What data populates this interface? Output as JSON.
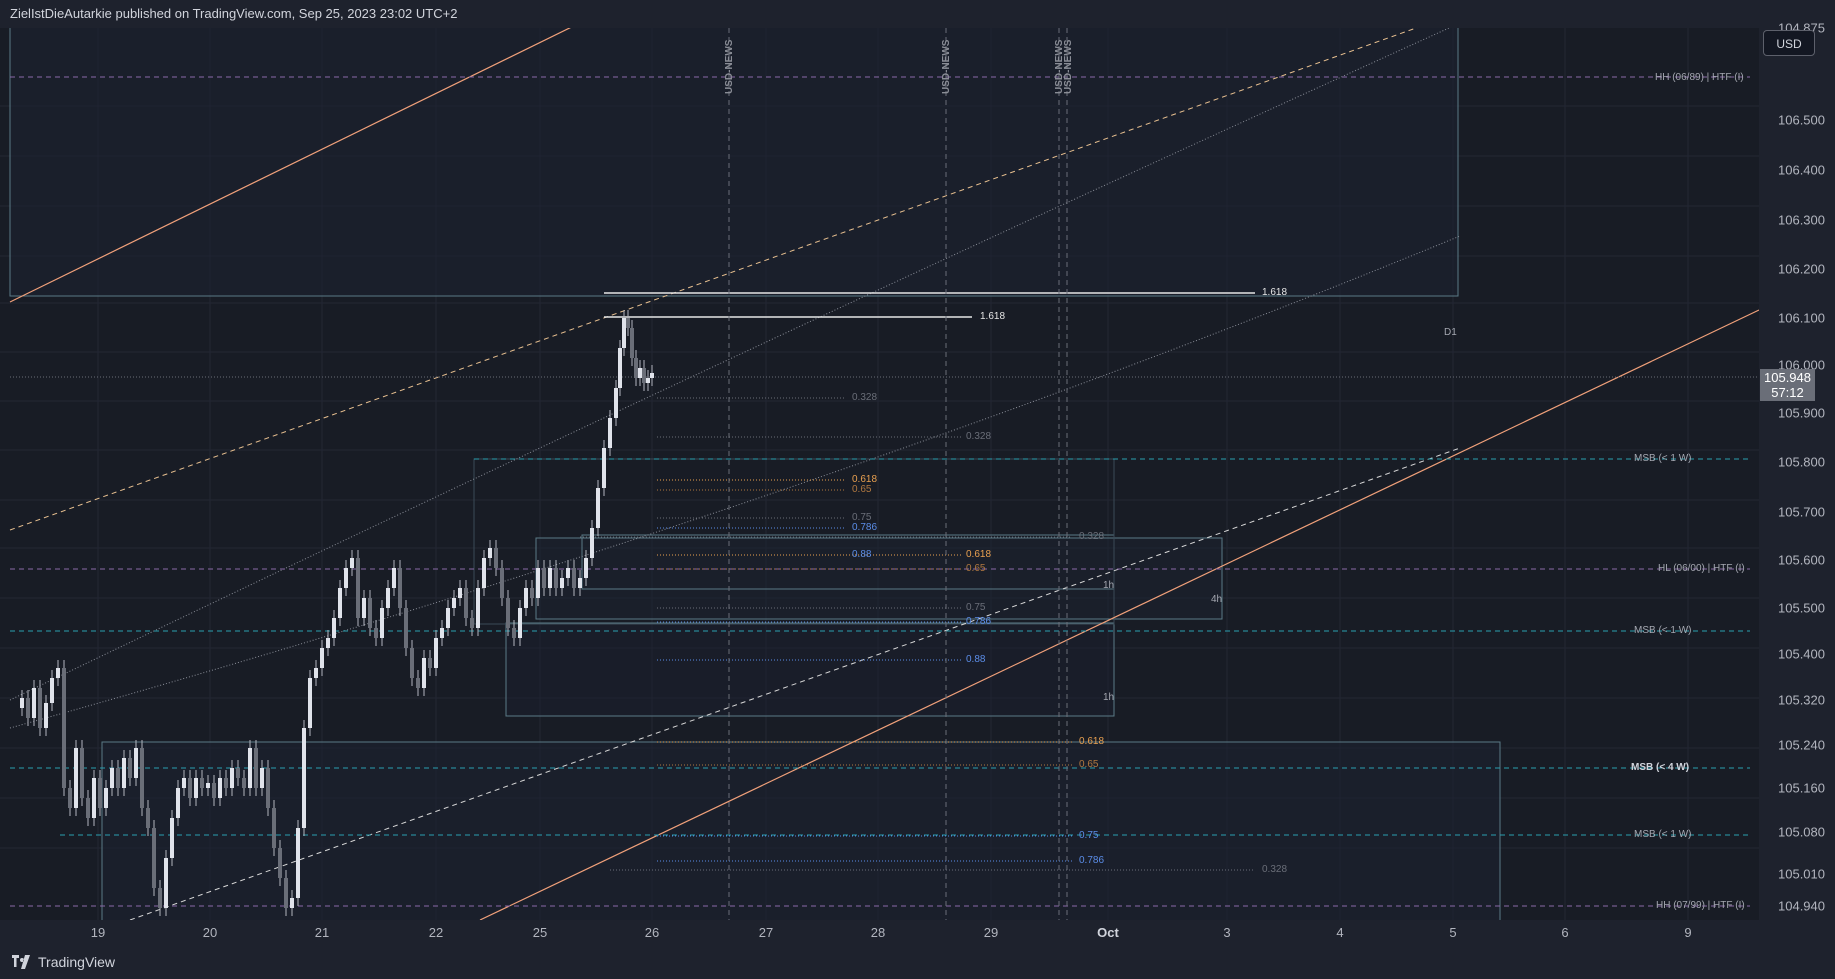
{
  "header": {
    "title": "ZielIstDieAutarkie published on TradingView.com, Sep 25, 2023 23:02 UTC+2"
  },
  "currency": "USD",
  "last_price": {
    "value": "105.948",
    "countdown": "57:12"
  },
  "price_axis": [
    "106.500",
    "106.400",
    "106.300",
    "106.200",
    "106.100",
    "106.000",
    "105.900",
    "105.800",
    "105.700",
    "105.600",
    "105.500",
    "105.400",
    "105.320",
    "105.240",
    "105.160",
    "105.080",
    "105.010",
    "104.940",
    "104.875"
  ],
  "time_axis": [
    {
      "label": "19",
      "bold": false
    },
    {
      "label": "20",
      "bold": false
    },
    {
      "label": "21",
      "bold": false
    },
    {
      "label": "22",
      "bold": false
    },
    {
      "label": "25",
      "bold": false
    },
    {
      "label": "26",
      "bold": false
    },
    {
      "label": "27",
      "bold": false
    },
    {
      "label": "28",
      "bold": false
    },
    {
      "label": "29",
      "bold": false
    },
    {
      "label": "Oct",
      "bold": true
    },
    {
      "label": "3",
      "bold": false
    },
    {
      "label": "4",
      "bold": false
    },
    {
      "label": "5",
      "bold": false
    },
    {
      "label": "6",
      "bold": false
    },
    {
      "label": "9",
      "bold": false
    }
  ],
  "levels": {
    "hh_top": "HH (06/89) | HTF (I)",
    "msb_1": "MSB (< 1 W)",
    "hl": "HL (06/00) | HTF (I)",
    "msb_2": "MSB (< 1 W)",
    "msb_4w": "MSB (< 4 W)",
    "msb_3": "MSB (< 1 W)",
    "hh_bottom": "HH (07/99) | HTF (I)"
  },
  "news": [
    "USD-NEWS",
    "USD-NEWS",
    "USD-NEWS",
    "USD-NEWS"
  ],
  "fib": {
    "f1618a": "1.618",
    "f1618b": "1.618",
    "f328a": "0.328",
    "f328b": "0.328",
    "f328c": "0.328",
    "f328d": "0.328",
    "f618a": "0.618",
    "f65a": "0.65",
    "f75a": "0.75",
    "f786a": "0.786",
    "f88a": "0.88",
    "f618b": "0.618",
    "f65b": "0.65",
    "f75b": "0.75",
    "f786b": "0.786",
    "f88b": "0.88",
    "f618c": "0.618",
    "f65c": "0.65",
    "f75c": "0.75",
    "f786c": "0.786"
  },
  "box_labels": {
    "d1": "D1",
    "h1a": "1h",
    "h4": "4h",
    "h1b": "1h"
  },
  "colors": {
    "background": "#181c25",
    "channel": "#f0a07a",
    "fib_orange": "#e8a050",
    "fib_blue": "#5b8de8",
    "msb": "#2a9fb0",
    "hh": "#8a6aa8"
  },
  "brand": "TradingView"
}
